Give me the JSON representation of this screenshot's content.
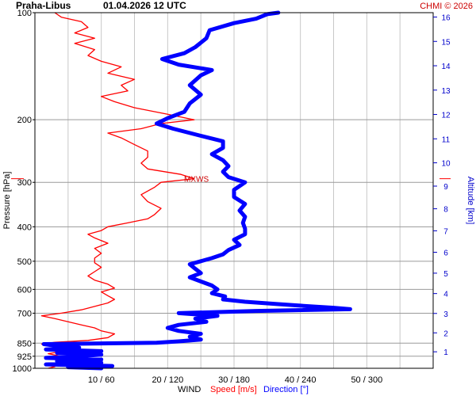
{
  "header": {
    "station": "Praha-Libus",
    "datetime": "01.04.2026 12 UTC",
    "credit": "CHMI © 2026"
  },
  "colors": {
    "speed": "#ff0000",
    "direction": "#0000ff",
    "grid": "#c8c8c8",
    "axis": "#000000",
    "altitude_axis": "#0000cc"
  },
  "axes": {
    "y_left_title": "Pressure [hPa]",
    "y_right_title": "Altitude [km]",
    "x_title_main": "WIND",
    "x_title_speed": "Speed [m/s]",
    "x_title_direction": "Direction [°]",
    "pressure_ticks": [
      "100",
      "200",
      "300",
      "400",
      "500",
      "600",
      "700",
      "850",
      "925",
      "1000"
    ],
    "altitude_ticks": [
      "1",
      "2",
      "3",
      "4",
      "5",
      "6",
      "7",
      "8",
      "9",
      "10",
      "11",
      "12",
      "13",
      "14",
      "15",
      "16"
    ],
    "wind_ticks": [
      "10 / 60",
      "20 / 120",
      "30 / 180",
      "40 / 240",
      "50 / 300"
    ],
    "mxws_label": "MXWS"
  },
  "chart_data": {
    "type": "line",
    "title": "Praha-Libus 01.04.2026 12 UTC",
    "y_scale": "log-pressure",
    "y_range_hpa": [
      1000,
      100
    ],
    "x_range_speed_ms": [
      0,
      60
    ],
    "x_range_direction_deg": [
      0,
      360
    ],
    "grid": true,
    "pressure_levels_hpa": [
      100,
      200,
      300,
      400,
      500,
      600,
      700,
      850,
      925,
      1000
    ],
    "altitude_levels_km": [
      1,
      2,
      3,
      4,
      5,
      6,
      7,
      8,
      9,
      10,
      11,
      12,
      13,
      14,
      15,
      16
    ],
    "max_wind_pressure_hpa": 293,
    "series": [
      {
        "name": "Speed [m/s]",
        "unit": "m/s",
        "points": [
          [
            1000,
            2
          ],
          [
            990,
            3
          ],
          [
            980,
            2
          ],
          [
            960,
            5
          ],
          [
            945,
            3
          ],
          [
            925,
            4
          ],
          [
            910,
            2
          ],
          [
            890,
            5
          ],
          [
            870,
            3
          ],
          [
            855,
            1
          ],
          [
            845,
            3
          ],
          [
            835,
            8
          ],
          [
            820,
            11
          ],
          [
            800,
            12
          ],
          [
            785,
            10
          ],
          [
            770,
            9
          ],
          [
            755,
            7
          ],
          [
            740,
            5
          ],
          [
            725,
            3
          ],
          [
            712,
            1
          ],
          [
            700,
            4
          ],
          [
            685,
            7
          ],
          [
            670,
            9
          ],
          [
            655,
            11
          ],
          [
            640,
            12
          ],
          [
            625,
            11
          ],
          [
            610,
            10
          ],
          [
            595,
            12
          ],
          [
            580,
            11
          ],
          [
            565,
            9
          ],
          [
            550,
            8
          ],
          [
            535,
            9
          ],
          [
            520,
            10
          ],
          [
            505,
            9
          ],
          [
            490,
            9
          ],
          [
            475,
            10
          ],
          [
            460,
            9
          ],
          [
            445,
            11
          ],
          [
            430,
            9
          ],
          [
            420,
            8
          ],
          [
            410,
            10
          ],
          [
            400,
            11
          ],
          [
            390,
            14
          ],
          [
            380,
            17
          ],
          [
            370,
            18
          ],
          [
            355,
            19
          ],
          [
            340,
            17
          ],
          [
            325,
            16
          ],
          [
            310,
            18
          ],
          [
            300,
            19
          ],
          [
            293,
            24
          ],
          [
            285,
            22
          ],
          [
            275,
            17
          ],
          [
            265,
            16
          ],
          [
            255,
            17
          ],
          [
            245,
            17
          ],
          [
            235,
            15
          ],
          [
            225,
            13
          ],
          [
            218,
            11
          ],
          [
            212,
            16
          ],
          [
            205,
            19
          ],
          [
            200,
            24
          ],
          [
            193,
            20
          ],
          [
            185,
            15
          ],
          [
            178,
            12
          ],
          [
            172,
            10
          ],
          [
            166,
            14
          ],
          [
            160,
            13
          ],
          [
            154,
            15
          ],
          [
            148,
            11
          ],
          [
            142,
            13
          ],
          [
            137,
            10
          ],
          [
            132,
            8
          ],
          [
            127,
            9
          ],
          [
            122,
            6
          ],
          [
            118,
            9
          ],
          [
            114,
            6
          ],
          [
            110,
            8
          ],
          [
            106,
            7
          ],
          [
            103,
            4
          ],
          [
            100,
            3
          ]
        ]
      },
      {
        "name": "Direction [°]",
        "unit": "deg",
        "points": [
          [
            1000,
            60
          ],
          [
            993,
            30
          ],
          [
            985,
            70
          ],
          [
            975,
            10
          ],
          [
            965,
            60
          ],
          [
            955,
            20
          ],
          [
            945,
            60
          ],
          [
            935,
            10
          ],
          [
            925,
            40
          ],
          [
            915,
            60
          ],
          [
            905,
            20
          ],
          [
            895,
            60
          ],
          [
            885,
            10
          ],
          [
            875,
            40
          ],
          [
            865,
            20
          ],
          [
            855,
            8
          ],
          [
            848,
            110
          ],
          [
            840,
            130
          ],
          [
            830,
            150
          ],
          [
            815,
            140
          ],
          [
            800,
            150
          ],
          [
            785,
            130
          ],
          [
            770,
            120
          ],
          [
            755,
            130
          ],
          [
            740,
            155
          ],
          [
            725,
            145
          ],
          [
            712,
            165
          ],
          [
            700,
            130
          ],
          [
            690,
            200
          ],
          [
            682,
            285
          ],
          [
            676,
            270
          ],
          [
            670,
            250
          ],
          [
            660,
            220
          ],
          [
            650,
            190
          ],
          [
            640,
            170
          ],
          [
            628,
            172
          ],
          [
            615,
            160
          ],
          [
            600,
            165
          ],
          [
            585,
            160
          ],
          [
            570,
            150
          ],
          [
            555,
            140
          ],
          [
            540,
            150
          ],
          [
            525,
            145
          ],
          [
            510,
            140
          ],
          [
            500,
            150
          ],
          [
            490,
            160
          ],
          [
            478,
            170
          ],
          [
            465,
            175
          ],
          [
            450,
            185
          ],
          [
            435,
            180
          ],
          [
            420,
            190
          ],
          [
            405,
            190
          ],
          [
            390,
            188
          ],
          [
            375,
            190
          ],
          [
            360,
            185
          ],
          [
            345,
            190
          ],
          [
            330,
            180
          ],
          [
            315,
            180
          ],
          [
            300,
            190
          ],
          [
            290,
            175
          ],
          [
            280,
            170
          ],
          [
            270,
            175
          ],
          [
            260,
            170
          ],
          [
            250,
            160
          ],
          [
            240,
            170
          ],
          [
            230,
            170
          ],
          [
            222,
            150
          ],
          [
            212,
            125
          ],
          [
            205,
            110
          ],
          [
            198,
            120
          ],
          [
            190,
            135
          ],
          [
            180,
            140
          ],
          [
            170,
            150
          ],
          [
            160,
            140
          ],
          [
            150,
            150
          ],
          [
            145,
            160
          ],
          [
            140,
            130
          ],
          [
            135,
            115
          ],
          [
            130,
            135
          ],
          [
            125,
            145
          ],
          [
            118,
            155
          ],
          [
            112,
            158
          ],
          [
            107,
            180
          ],
          [
            104,
            200
          ],
          [
            101,
            210
          ],
          [
            100,
            220
          ]
        ]
      }
    ]
  }
}
